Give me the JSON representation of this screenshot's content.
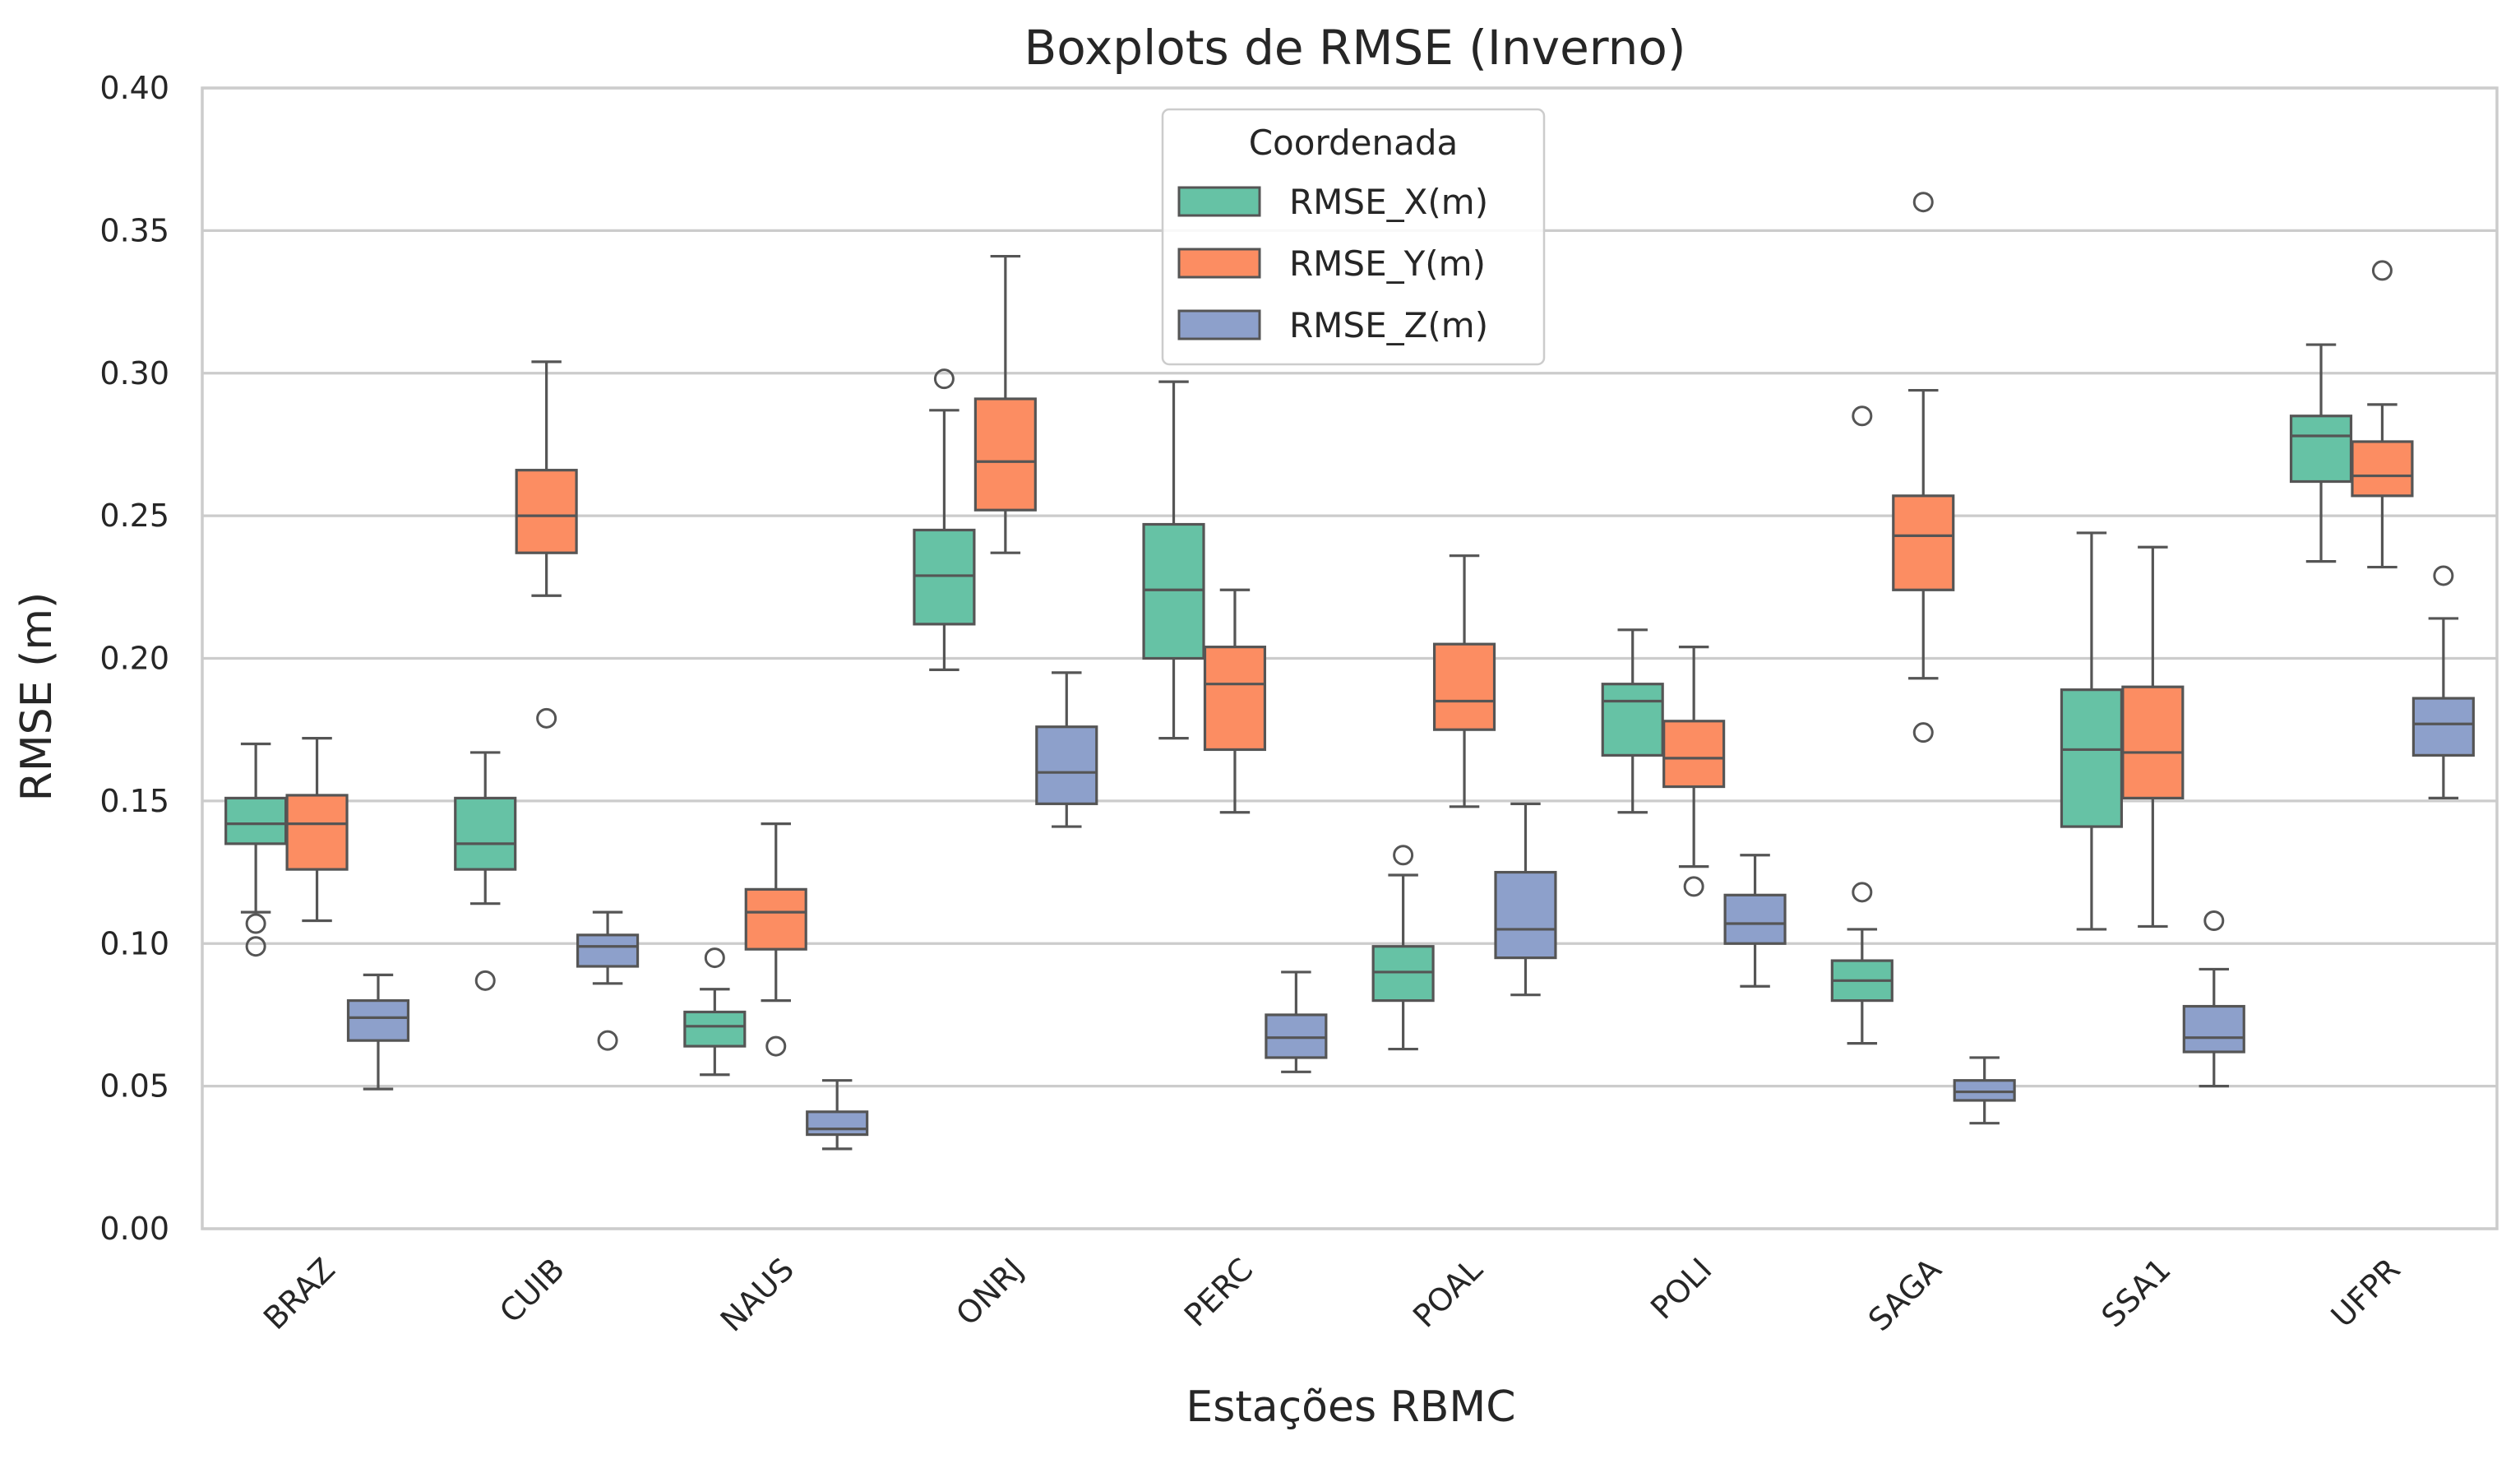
{
  "chart_data": {
    "type": "boxplot",
    "title": "Boxplots de RMSE (Inverno)",
    "xlabel": "Estações RBMC",
    "ylabel": "RMSE (m)",
    "ylim": [
      0,
      0.4
    ],
    "yticks": [
      "0.00",
      "0.05",
      "0.10",
      "0.15",
      "0.20",
      "0.25",
      "0.30",
      "0.35",
      "0.40"
    ],
    "grid": "horizontal",
    "categories": [
      "BRAZ",
      "CUIB",
      "NAUS",
      "ONRJ",
      "PERC",
      "POAL",
      "POLI",
      "SAGA",
      "SSA1",
      "UFPR"
    ],
    "legend": {
      "title": "Coordenada",
      "placement": "upper-center"
    },
    "series": [
      {
        "name": "RMSE_X(m)",
        "color": "#66c2a5",
        "boxes": [
          {
            "whislo": 0.111,
            "q1": 0.135,
            "med": 0.142,
            "q3": 0.151,
            "whishi": 0.17,
            "fliers": [
              0.107,
              0.099
            ]
          },
          {
            "whislo": 0.114,
            "q1": 0.126,
            "med": 0.135,
            "q3": 0.151,
            "whishi": 0.167,
            "fliers": [
              0.087
            ]
          },
          {
            "whislo": 0.054,
            "q1": 0.064,
            "med": 0.071,
            "q3": 0.076,
            "whishi": 0.084,
            "fliers": [
              0.095
            ]
          },
          {
            "whislo": 0.196,
            "q1": 0.212,
            "med": 0.229,
            "q3": 0.245,
            "whishi": 0.287,
            "fliers": [
              0.298
            ]
          },
          {
            "whislo": 0.172,
            "q1": 0.2,
            "med": 0.224,
            "q3": 0.247,
            "whishi": 0.297,
            "fliers": []
          },
          {
            "whislo": 0.063,
            "q1": 0.08,
            "med": 0.09,
            "q3": 0.099,
            "whishi": 0.124,
            "fliers": [
              0.131
            ]
          },
          {
            "whislo": 0.146,
            "q1": 0.166,
            "med": 0.185,
            "q3": 0.191,
            "whishi": 0.21,
            "fliers": []
          },
          {
            "whislo": 0.065,
            "q1": 0.08,
            "med": 0.087,
            "q3": 0.094,
            "whishi": 0.105,
            "fliers": [
              0.118,
              0.285
            ]
          },
          {
            "whislo": 0.105,
            "q1": 0.141,
            "med": 0.168,
            "q3": 0.189,
            "whishi": 0.244,
            "fliers": []
          },
          {
            "whislo": 0.234,
            "q1": 0.262,
            "med": 0.278,
            "q3": 0.285,
            "whishi": 0.31,
            "fliers": []
          }
        ]
      },
      {
        "name": "RMSE_Y(m)",
        "color": "#fc8d62",
        "boxes": [
          {
            "whislo": 0.108,
            "q1": 0.126,
            "med": 0.142,
            "q3": 0.152,
            "whishi": 0.172,
            "fliers": []
          },
          {
            "whislo": 0.222,
            "q1": 0.237,
            "med": 0.25,
            "q3": 0.266,
            "whishi": 0.304,
            "fliers": [
              0.179
            ]
          },
          {
            "whislo": 0.08,
            "q1": 0.098,
            "med": 0.111,
            "q3": 0.119,
            "whishi": 0.142,
            "fliers": [
              0.064
            ]
          },
          {
            "whislo": 0.237,
            "q1": 0.252,
            "med": 0.269,
            "q3": 0.291,
            "whishi": 0.341,
            "fliers": []
          },
          {
            "whislo": 0.146,
            "q1": 0.168,
            "med": 0.191,
            "q3": 0.204,
            "whishi": 0.224,
            "fliers": []
          },
          {
            "whislo": 0.148,
            "q1": 0.175,
            "med": 0.185,
            "q3": 0.205,
            "whishi": 0.236,
            "fliers": []
          },
          {
            "whislo": 0.127,
            "q1": 0.155,
            "med": 0.165,
            "q3": 0.178,
            "whishi": 0.204,
            "fliers": [
              0.12
            ]
          },
          {
            "whislo": 0.193,
            "q1": 0.224,
            "med": 0.243,
            "q3": 0.257,
            "whishi": 0.294,
            "fliers": [
              0.36,
              0.174
            ]
          },
          {
            "whislo": 0.106,
            "q1": 0.151,
            "med": 0.167,
            "q3": 0.19,
            "whishi": 0.239,
            "fliers": []
          },
          {
            "whislo": 0.232,
            "q1": 0.257,
            "med": 0.264,
            "q3": 0.276,
            "whishi": 0.289,
            "fliers": [
              0.336
            ]
          }
        ]
      },
      {
        "name": "RMSE_Z(m)",
        "color": "#8da0cb",
        "boxes": [
          {
            "whislo": 0.049,
            "q1": 0.066,
            "med": 0.074,
            "q3": 0.08,
            "whishi": 0.089,
            "fliers": []
          },
          {
            "whislo": 0.086,
            "q1": 0.092,
            "med": 0.099,
            "q3": 0.103,
            "whishi": 0.111,
            "fliers": [
              0.066
            ]
          },
          {
            "whislo": 0.028,
            "q1": 0.033,
            "med": 0.035,
            "q3": 0.041,
            "whishi": 0.052,
            "fliers": []
          },
          {
            "whislo": 0.141,
            "q1": 0.149,
            "med": 0.16,
            "q3": 0.176,
            "whishi": 0.195,
            "fliers": []
          },
          {
            "whislo": 0.055,
            "q1": 0.06,
            "med": 0.067,
            "q3": 0.075,
            "whishi": 0.09,
            "fliers": []
          },
          {
            "whislo": 0.082,
            "q1": 0.095,
            "med": 0.105,
            "q3": 0.125,
            "whishi": 0.149,
            "fliers": []
          },
          {
            "whislo": 0.085,
            "q1": 0.1,
            "med": 0.107,
            "q3": 0.117,
            "whishi": 0.131,
            "fliers": []
          },
          {
            "whislo": 0.037,
            "q1": 0.045,
            "med": 0.048,
            "q3": 0.052,
            "whishi": 0.06,
            "fliers": []
          },
          {
            "whislo": 0.05,
            "q1": 0.062,
            "med": 0.067,
            "q3": 0.078,
            "whishi": 0.091,
            "fliers": [
              0.108
            ]
          },
          {
            "whislo": 0.151,
            "q1": 0.166,
            "med": 0.177,
            "q3": 0.186,
            "whishi": 0.214,
            "fliers": [
              0.229
            ]
          }
        ]
      }
    ]
  }
}
